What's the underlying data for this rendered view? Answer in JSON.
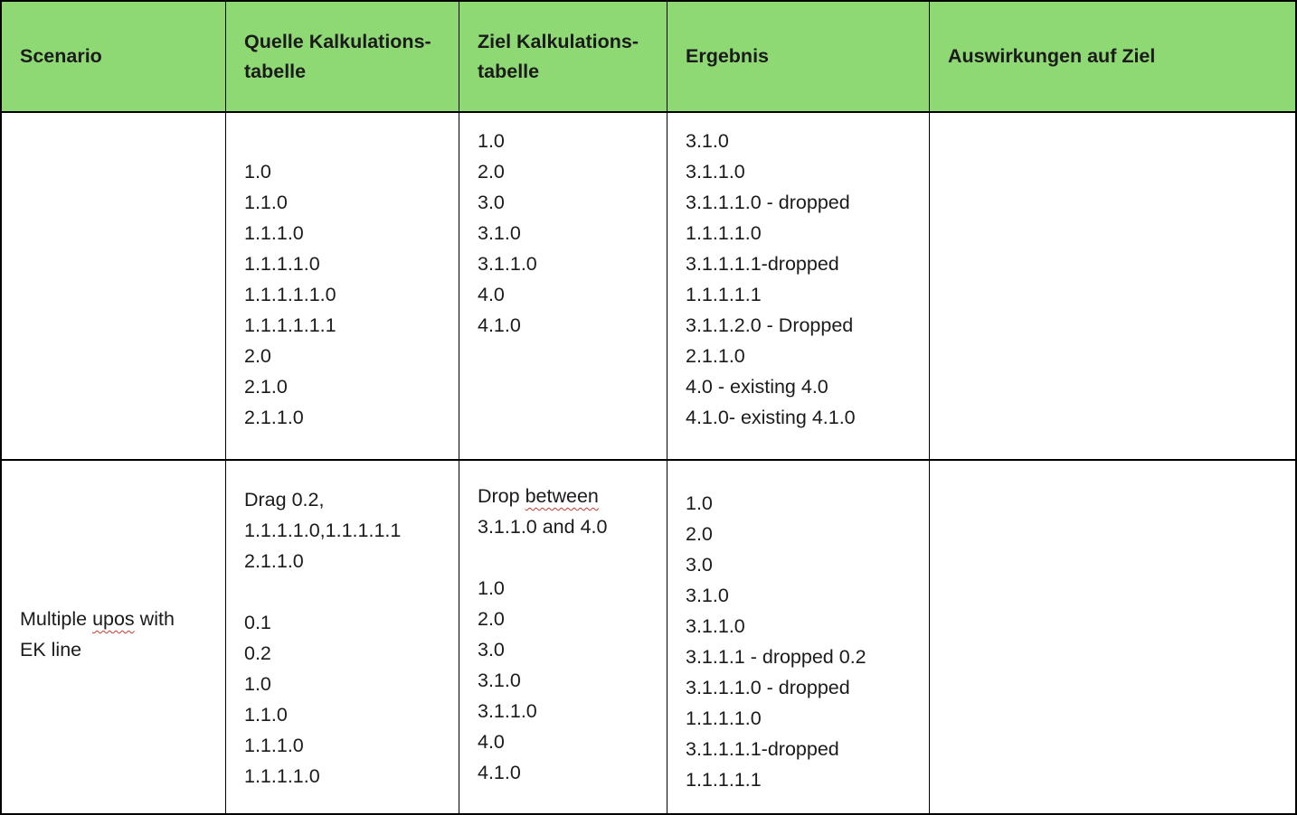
{
  "colors": {
    "header_bg": "#8ED973",
    "border": "#000000",
    "text": "#1B1B1B",
    "squiggle": "#C43A2F",
    "page_bg": "#FFFFFF"
  },
  "spellcheck": {
    "misspelled_words": [
      "upos",
      "between"
    ]
  },
  "table": {
    "header": {
      "scenario": {
        "lines": [
          "Scenario"
        ]
      },
      "quelle": {
        "lines": [
          "Quelle Kalkulations-",
          "tabelle"
        ]
      },
      "ziel": {
        "lines": [
          "Ziel Kalkulations-",
          "tabelle"
        ]
      },
      "ergebnis": {
        "lines": [
          "Ergebnis"
        ]
      },
      "auswirkungen": {
        "lines": [
          "Auswirkungen auf Ziel"
        ]
      }
    },
    "rows": [
      {
        "scenario": [],
        "quelle": [
          "",
          "1.0",
          "1.1.0",
          "1.1.1.0",
          "1.1.1.1.0",
          "1.1.1.1.1.0",
          "1.1.1.1.1.1",
          "2.0",
          "2.1.0",
          "2.1.1.0"
        ],
        "ziel": [
          "1.0",
          "2.0",
          "3.0",
          "3.1.0",
          "3.1.1.0",
          "4.0",
          "4.1.0"
        ],
        "ergebnis": [
          "3.1.0",
          "3.1.1.0",
          "3.1.1.1.0 - dropped",
          "1.1.1.1.0",
          "3.1.1.1.1-dropped",
          "1.1.1.1.1",
          "3.1.1.2.0 - Dropped",
          "2.1.1.0",
          "4.0 - existing 4.0",
          "4.1.0- existing 4.1.0"
        ],
        "auswirkungen": []
      },
      {
        "scenario": [
          "Multiple upos with",
          "EK line"
        ],
        "quelle": [
          "Drag 0.2,",
          "1.1.1.1.0,1.1.1.1.1",
          "2.1.1.0",
          "",
          "0.1",
          "0.2",
          "1.0",
          "1.1.0",
          "1.1.1.0",
          "1.1.1.1.0"
        ],
        "ziel": [
          "Drop between",
          "3.1.1.0 and 4.0",
          "",
          "1.0",
          "2.0",
          "3.0",
          "3.1.0",
          "3.1.1.0",
          "4.0",
          "4.1.0"
        ],
        "ergebnis": [
          "1.0",
          "2.0",
          "3.0",
          "3.1.0",
          "3.1.1.0",
          "3.1.1.1 - dropped 0.2",
          "3.1.1.1.0 - dropped",
          "1.1.1.1.0",
          "3.1.1.1.1-dropped",
          "1.1.1.1.1"
        ],
        "auswirkungen": []
      }
    ]
  }
}
